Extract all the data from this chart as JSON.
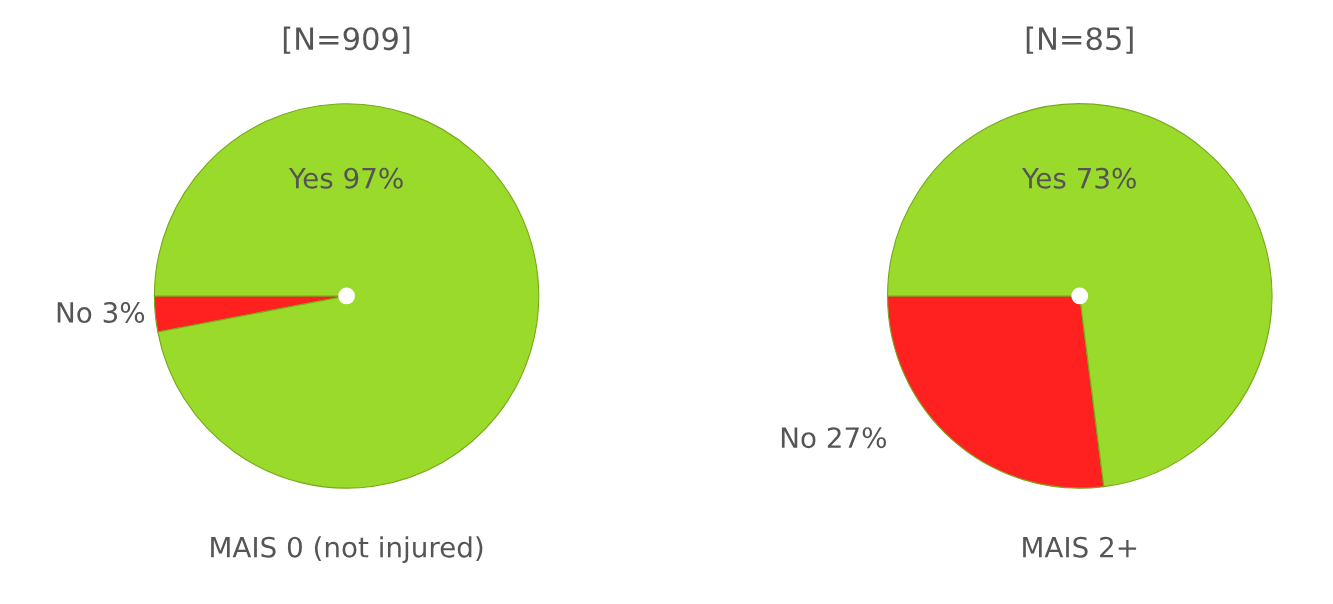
{
  "chart_data": [
    {
      "type": "pie",
      "title": "[N=909]",
      "xlabel": "MAIS 0 (not injured)",
      "categories": [
        "No",
        "Yes"
      ],
      "values": [
        3,
        97
      ],
      "value_labels": [
        "3%",
        "97%"
      ],
      "colors": [
        "#ff2020",
        "#9ada2a"
      ]
    },
    {
      "type": "pie",
      "title": "[N=85]",
      "xlabel": "MAIS 2+",
      "categories": [
        "No",
        "Yes"
      ],
      "values": [
        27,
        73
      ],
      "value_labels": [
        "27%",
        "73%"
      ],
      "colors": [
        "#ff2020",
        "#9ada2a"
      ]
    }
  ]
}
